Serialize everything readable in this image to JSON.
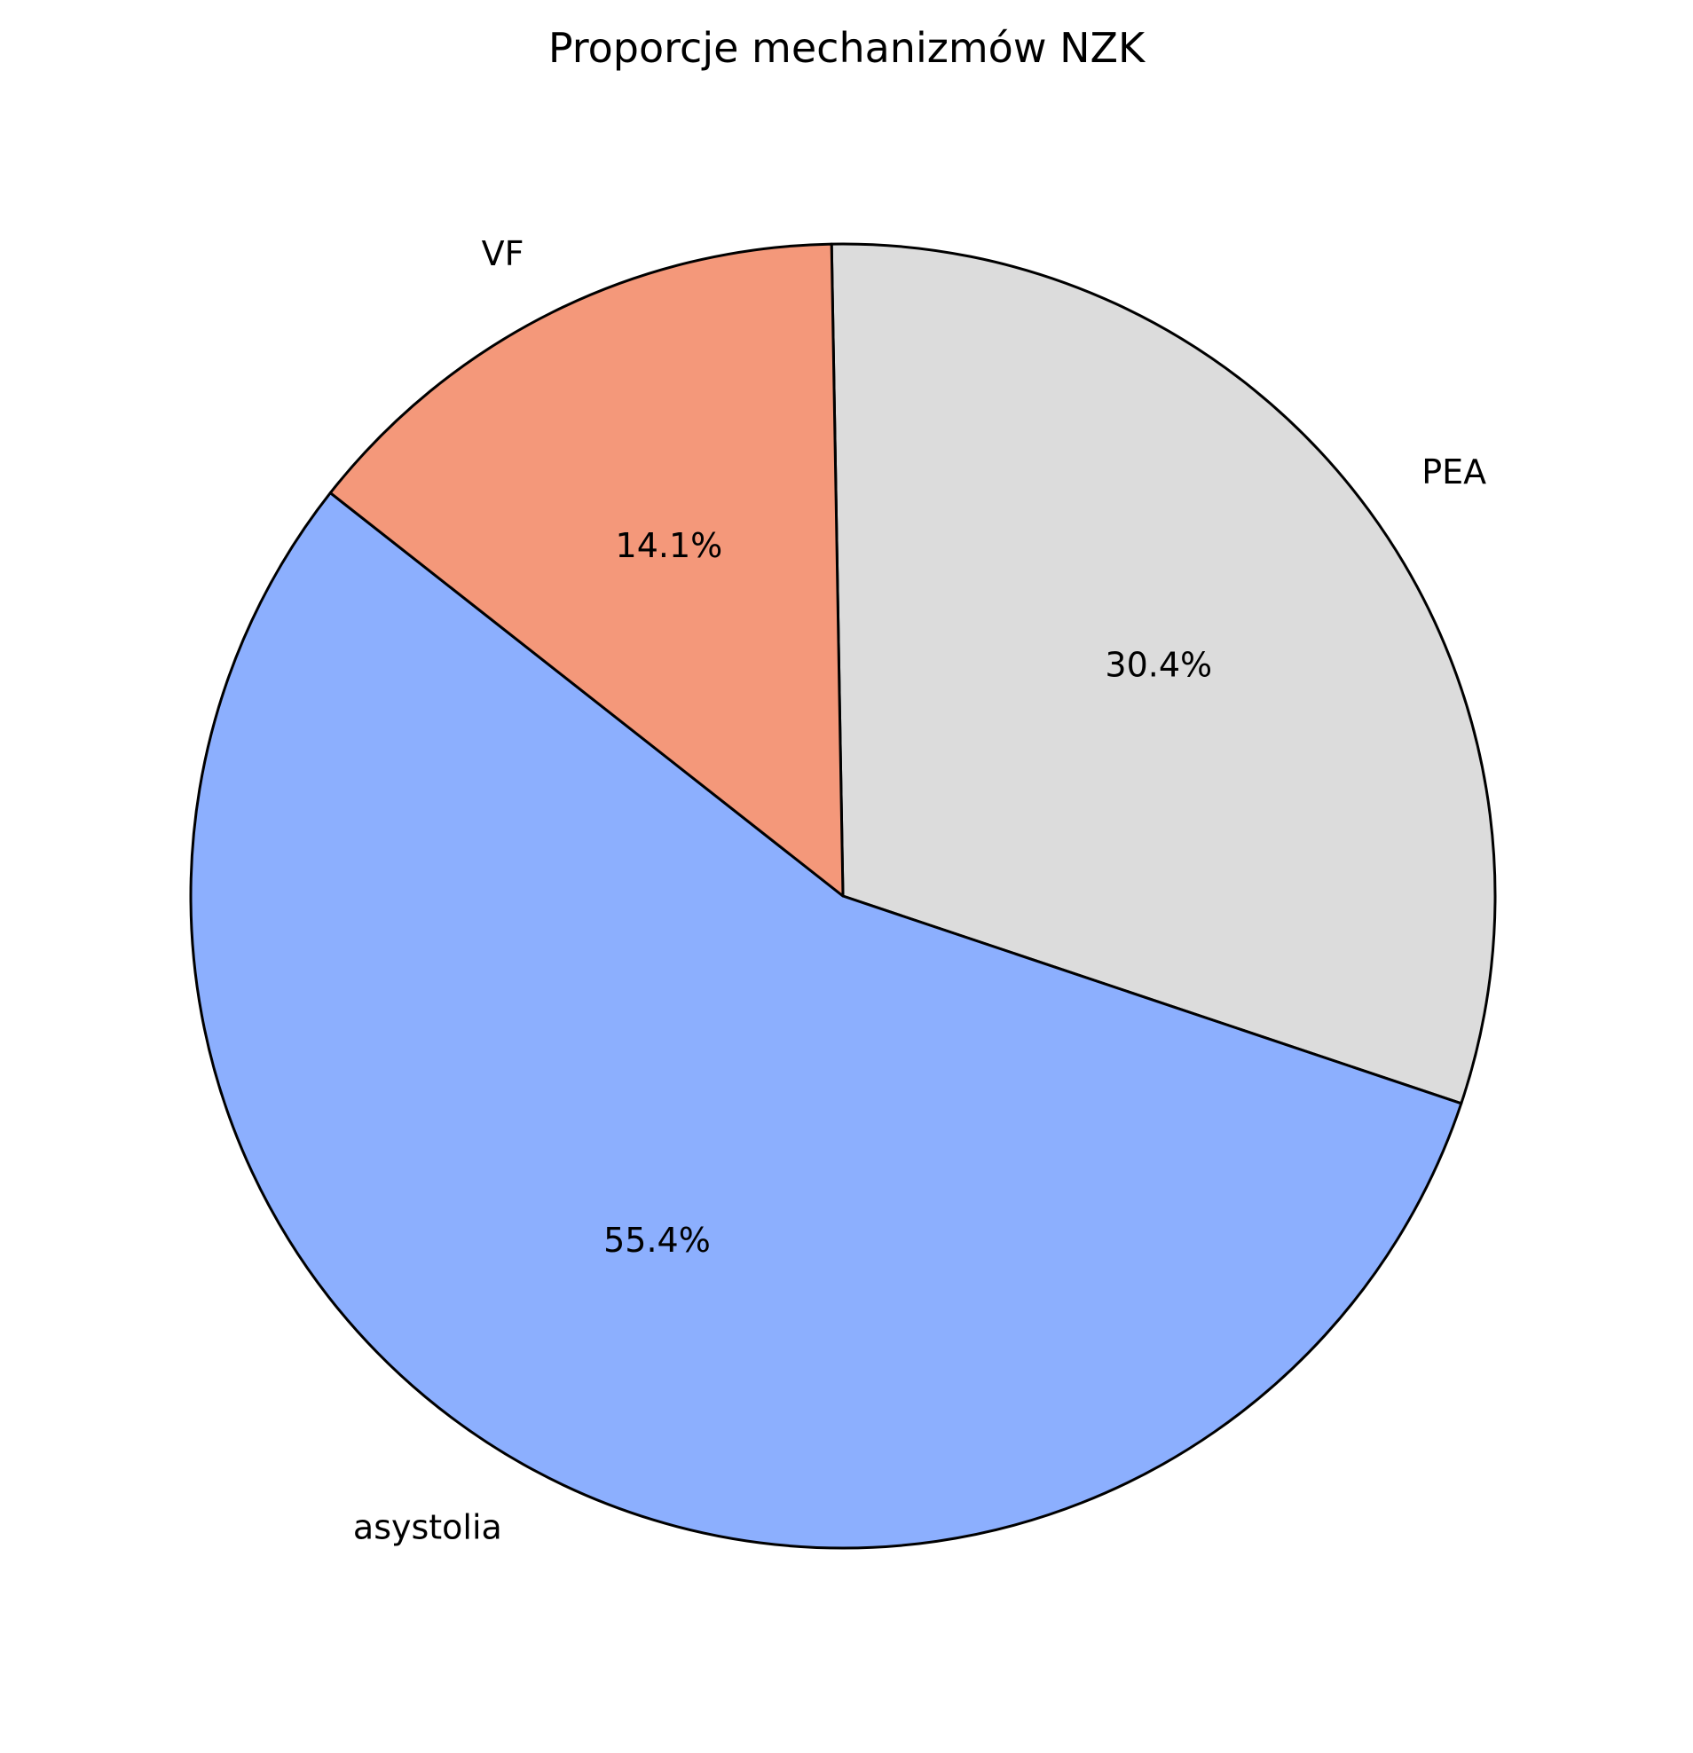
{
  "chart_data": {
    "type": "pie",
    "title": "Proporcje mechanizmów NZK",
    "categories": [
      "PEA",
      "asystolia",
      "VF"
    ],
    "values": [
      30.4,
      55.4,
      14.1
    ],
    "value_labels": [
      "30.4%",
      "55.4%",
      "14.1%"
    ],
    "colors": [
      "#dcdcdc",
      "#8caffe",
      "#f4987a"
    ],
    "edge_color": "#000000",
    "start_angle_deg": 91,
    "direction": "clockwise",
    "legend": "none"
  }
}
